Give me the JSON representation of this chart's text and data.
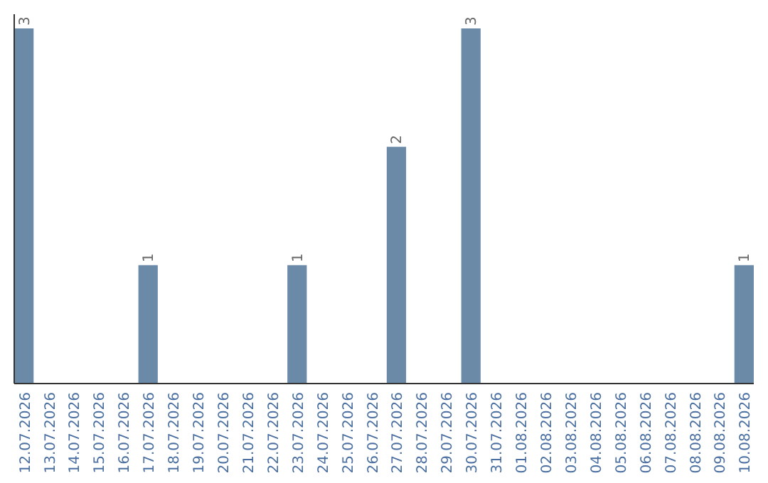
{
  "chart_data": {
    "type": "bar",
    "categories": [
      "12.07.2026",
      "13.07.2026",
      "14.07.2026",
      "15.07.2026",
      "16.07.2026",
      "17.07.2026",
      "18.07.2026",
      "19.07.2026",
      "20.07.2026",
      "21.07.2026",
      "22.07.2026",
      "23.07.2026",
      "24.07.2026",
      "25.07.2026",
      "26.07.2026",
      "27.07.2026",
      "28.07.2026",
      "29.07.2026",
      "30.07.2026",
      "31.07.2026",
      "01.08.2026",
      "02.08.2026",
      "03.08.2026",
      "04.08.2026",
      "05.08.2026",
      "06.08.2026",
      "07.08.2026",
      "08.08.2026",
      "09.08.2026",
      "10.08.2026"
    ],
    "values": [
      3,
      0,
      0,
      0,
      0,
      1,
      0,
      0,
      0,
      0,
      0,
      1,
      0,
      0,
      0,
      2,
      0,
      0,
      3,
      0,
      0,
      0,
      0,
      0,
      0,
      0,
      0,
      0,
      0,
      1
    ],
    "value_labels": [
      "3",
      null,
      null,
      null,
      null,
      "1",
      null,
      null,
      null,
      null,
      null,
      "1",
      null,
      null,
      null,
      "2",
      null,
      null,
      "3",
      null,
      null,
      null,
      null,
      null,
      null,
      null,
      null,
      null,
      null,
      "1"
    ],
    "color": "#6b8aa8",
    "tick_labels": "x"
  }
}
